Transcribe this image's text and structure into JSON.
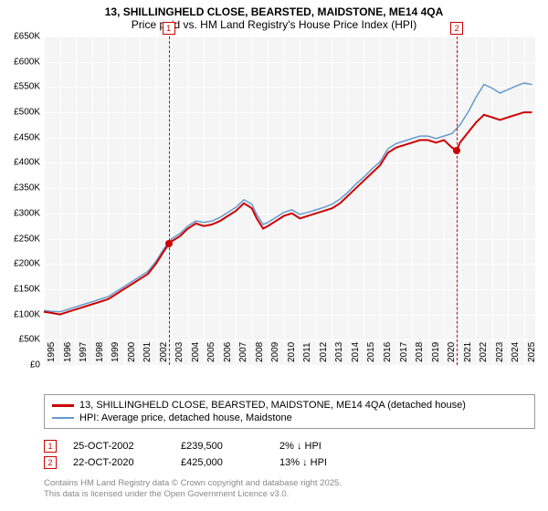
{
  "title": {
    "line1": "13, SHILLINGHELD CLOSE, BEARSTED, MAIDSTONE, ME14 4QA",
    "line2": "Price paid vs. HM Land Registry's House Price Index (HPI)"
  },
  "chart": {
    "type": "line",
    "background_color": "#f5f5f5",
    "grid_color": "#ffffff",
    "xlim": [
      1995,
      2025.7
    ],
    "ylim": [
      0,
      650000
    ],
    "ytick_step": 50000,
    "ytick_format": "£{}K",
    "xticks": [
      1995,
      1996,
      1997,
      1998,
      1999,
      2000,
      2001,
      2002,
      2003,
      2004,
      2005,
      2006,
      2007,
      2008,
      2009,
      2010,
      2011,
      2012,
      2013,
      2014,
      2015,
      2016,
      2017,
      2018,
      2019,
      2020,
      2021,
      2022,
      2023,
      2024,
      2025
    ],
    "series": [
      {
        "id": "price_paid",
        "label": "13, SHILLINGHELD CLOSE, BEARSTED, MAIDSTONE, ME14 4QA (detached house)",
        "color": "#cc0000",
        "line_width": 2,
        "data": [
          [
            1995.0,
            105000
          ],
          [
            1995.5,
            103000
          ],
          [
            1996.0,
            100000
          ],
          [
            1996.5,
            105000
          ],
          [
            1997.0,
            110000
          ],
          [
            1997.5,
            115000
          ],
          [
            1998.0,
            120000
          ],
          [
            1998.5,
            125000
          ],
          [
            1999.0,
            130000
          ],
          [
            1999.5,
            140000
          ],
          [
            2000.0,
            150000
          ],
          [
            2000.5,
            160000
          ],
          [
            2001.0,
            170000
          ],
          [
            2001.5,
            180000
          ],
          [
            2002.0,
            200000
          ],
          [
            2002.5,
            225000
          ],
          [
            2002.8,
            239500
          ],
          [
            2003.0,
            245000
          ],
          [
            2003.5,
            255000
          ],
          [
            2004.0,
            270000
          ],
          [
            2004.5,
            280000
          ],
          [
            2005.0,
            275000
          ],
          [
            2005.5,
            278000
          ],
          [
            2006.0,
            285000
          ],
          [
            2006.5,
            295000
          ],
          [
            2007.0,
            305000
          ],
          [
            2007.5,
            320000
          ],
          [
            2008.0,
            310000
          ],
          [
            2008.3,
            290000
          ],
          [
            2008.7,
            270000
          ],
          [
            2009.0,
            275000
          ],
          [
            2009.5,
            285000
          ],
          [
            2010.0,
            295000
          ],
          [
            2010.5,
            300000
          ],
          [
            2011.0,
            290000
          ],
          [
            2011.5,
            295000
          ],
          [
            2012.0,
            300000
          ],
          [
            2012.5,
            305000
          ],
          [
            2013.0,
            310000
          ],
          [
            2013.5,
            320000
          ],
          [
            2014.0,
            335000
          ],
          [
            2014.5,
            350000
          ],
          [
            2015.0,
            365000
          ],
          [
            2015.5,
            380000
          ],
          [
            2016.0,
            395000
          ],
          [
            2016.5,
            420000
          ],
          [
            2017.0,
            430000
          ],
          [
            2017.5,
            435000
          ],
          [
            2018.0,
            440000
          ],
          [
            2018.5,
            445000
          ],
          [
            2019.0,
            445000
          ],
          [
            2019.5,
            440000
          ],
          [
            2020.0,
            445000
          ],
          [
            2020.5,
            430000
          ],
          [
            2020.8,
            425000
          ],
          [
            2021.0,
            440000
          ],
          [
            2021.5,
            460000
          ],
          [
            2022.0,
            480000
          ],
          [
            2022.5,
            495000
          ],
          [
            2023.0,
            490000
          ],
          [
            2023.5,
            485000
          ],
          [
            2024.0,
            490000
          ],
          [
            2024.5,
            495000
          ],
          [
            2025.0,
            500000
          ],
          [
            2025.5,
            500000
          ]
        ]
      },
      {
        "id": "hpi",
        "label": "HPI: Average price, detached house, Maidstone",
        "color": "#6699cc",
        "line_width": 1.5,
        "data": [
          [
            1995.0,
            108000
          ],
          [
            1995.5,
            106000
          ],
          [
            1996.0,
            105000
          ],
          [
            1996.5,
            110000
          ],
          [
            1997.0,
            115000
          ],
          [
            1997.5,
            120000
          ],
          [
            1998.0,
            125000
          ],
          [
            1998.5,
            130000
          ],
          [
            1999.0,
            135000
          ],
          [
            1999.5,
            145000
          ],
          [
            2000.0,
            155000
          ],
          [
            2000.5,
            165000
          ],
          [
            2001.0,
            175000
          ],
          [
            2001.5,
            185000
          ],
          [
            2002.0,
            205000
          ],
          [
            2002.5,
            230000
          ],
          [
            2003.0,
            250000
          ],
          [
            2003.5,
            260000
          ],
          [
            2004.0,
            275000
          ],
          [
            2004.5,
            285000
          ],
          [
            2005.0,
            282000
          ],
          [
            2005.5,
            285000
          ],
          [
            2006.0,
            292000
          ],
          [
            2006.5,
            302000
          ],
          [
            2007.0,
            312000
          ],
          [
            2007.5,
            327000
          ],
          [
            2008.0,
            318000
          ],
          [
            2008.3,
            298000
          ],
          [
            2008.7,
            278000
          ],
          [
            2009.0,
            282000
          ],
          [
            2009.5,
            292000
          ],
          [
            2010.0,
            302000
          ],
          [
            2010.5,
            307000
          ],
          [
            2011.0,
            298000
          ],
          [
            2011.5,
            302000
          ],
          [
            2012.0,
            307000
          ],
          [
            2012.5,
            312000
          ],
          [
            2013.0,
            318000
          ],
          [
            2013.5,
            328000
          ],
          [
            2014.0,
            342000
          ],
          [
            2014.5,
            358000
          ],
          [
            2015.0,
            372000
          ],
          [
            2015.5,
            388000
          ],
          [
            2016.0,
            402000
          ],
          [
            2016.5,
            428000
          ],
          [
            2017.0,
            438000
          ],
          [
            2017.5,
            443000
          ],
          [
            2018.0,
            448000
          ],
          [
            2018.5,
            453000
          ],
          [
            2019.0,
            453000
          ],
          [
            2019.5,
            448000
          ],
          [
            2020.0,
            453000
          ],
          [
            2020.5,
            458000
          ],
          [
            2021.0,
            475000
          ],
          [
            2021.5,
            500000
          ],
          [
            2022.0,
            530000
          ],
          [
            2022.5,
            555000
          ],
          [
            2023.0,
            548000
          ],
          [
            2023.5,
            538000
          ],
          [
            2024.0,
            545000
          ],
          [
            2024.5,
            552000
          ],
          [
            2025.0,
            558000
          ],
          [
            2025.5,
            555000
          ]
        ]
      }
    ],
    "markers": [
      {
        "id": "1",
        "x": 2002.8,
        "y": 239500,
        "color": "#cc0000"
      },
      {
        "id": "2",
        "x": 2020.8,
        "y": 425000,
        "color": "#cc0000"
      }
    ]
  },
  "legend": {
    "price_paid": "13, SHILLINGHELD CLOSE, BEARSTED, MAIDSTONE, ME14 4QA (detached house)",
    "hpi": "HPI: Average price, detached house, Maidstone"
  },
  "events": [
    {
      "num": "1",
      "date": "25-OCT-2002",
      "price": "£239,500",
      "pct": "2% ↓ HPI"
    },
    {
      "num": "2",
      "date": "22-OCT-2020",
      "price": "£425,000",
      "pct": "13% ↓ HPI"
    }
  ],
  "attribution": {
    "line1": "Contains HM Land Registry data © Crown copyright and database right 2025.",
    "line2": "This data is licensed under the Open Government Licence v3.0."
  }
}
